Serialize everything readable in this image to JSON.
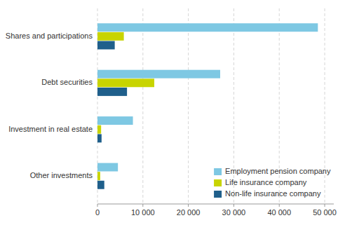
{
  "chart_data": {
    "type": "bar",
    "orientation": "horizontal",
    "categories": [
      "Other investments",
      "Investment in real estate",
      "Debt securities",
      "Shares and participations"
    ],
    "series": [
      {
        "name": "Employment pension company",
        "color": "#7ec8e3",
        "values": [
          4500,
          7800,
          27000,
          48500
        ]
      },
      {
        "name": "Life insurance company",
        "color": "#c8d400",
        "values": [
          600,
          800,
          12500,
          5800
        ]
      },
      {
        "name": "Non-life insurance company",
        "color": "#1f5f8b",
        "values": [
          1500,
          900,
          6500,
          3800
        ]
      }
    ],
    "xlim": [
      0,
      52000
    ],
    "xticks": [
      0,
      {
        "value": 10000,
        "label": "10 000"
      },
      {
        "value": 20000,
        "label": "20 000"
      },
      {
        "value": 30000,
        "label": "30 000"
      },
      {
        "value": 40000,
        "label": "40 000"
      },
      {
        "value": 50000,
        "label": "50 000"
      }
    ],
    "grid": true,
    "legend": "lower right"
  }
}
